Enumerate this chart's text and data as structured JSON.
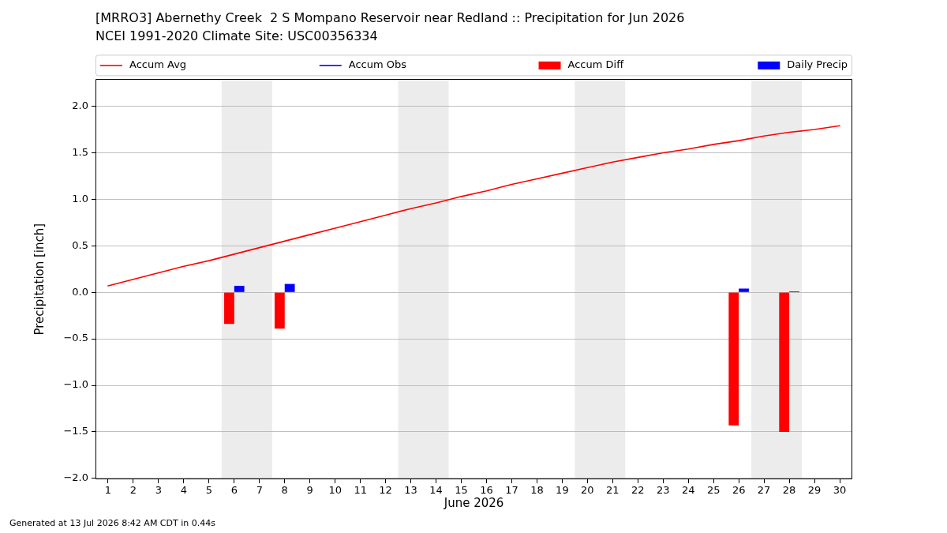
{
  "chart_data": {
    "type": "bar",
    "title": "[MRRO3] Abernethy Creek  2 S Mompano Reservoir near Redland :: Precipitation for Jun 2026",
    "subtitle": "NCEI 1991-2020 Climate Site: USC00356334",
    "xlabel": "June 2026",
    "ylabel": "Precipitation [inch]",
    "annotations": [
      "Generated at 13 Jul 2026 8:42 AM CDT in 0.44s"
    ],
    "x": [
      1,
      2,
      3,
      4,
      5,
      6,
      7,
      8,
      9,
      10,
      11,
      12,
      13,
      14,
      15,
      16,
      17,
      18,
      19,
      20,
      21,
      22,
      23,
      24,
      25,
      26,
      27,
      28,
      29,
      30
    ],
    "series": [
      {
        "name": "Accum Avg",
        "type": "line",
        "color": "#ff0000",
        "values": [
          0.07,
          0.14,
          0.21,
          0.28,
          0.34,
          0.41,
          0.48,
          0.55,
          0.62,
          0.69,
          0.76,
          0.83,
          0.9,
          0.96,
          1.03,
          1.09,
          1.16,
          1.22,
          1.28,
          1.34,
          1.4,
          1.45,
          1.5,
          1.54,
          1.59,
          1.63,
          1.68,
          1.72,
          1.75,
          1.79
        ]
      },
      {
        "name": "Accum Obs",
        "type": "line",
        "color": "#0000ff",
        "values": [
          null,
          null,
          null,
          null,
          null,
          null,
          null,
          null,
          null,
          null,
          null,
          null,
          null,
          null,
          null,
          null,
          null,
          null,
          null,
          null,
          null,
          null,
          null,
          null,
          null,
          null,
          null,
          null,
          null,
          null
        ]
      },
      {
        "name": "Accum Diff",
        "color": "#ff0000",
        "values": [
          null,
          null,
          null,
          null,
          null,
          -0.34,
          null,
          -0.39,
          null,
          null,
          null,
          null,
          null,
          null,
          null,
          null,
          null,
          null,
          null,
          null,
          null,
          null,
          null,
          null,
          null,
          -1.43,
          null,
          -1.5,
          null,
          null
        ]
      },
      {
        "name": "Daily Precip",
        "color": "#0000ff",
        "values": [
          null,
          null,
          null,
          null,
          null,
          0.07,
          null,
          0.09,
          null,
          null,
          null,
          null,
          null,
          null,
          null,
          null,
          null,
          null,
          null,
          null,
          null,
          null,
          null,
          null,
          null,
          0.04,
          null,
          0.01,
          null,
          null
        ]
      }
    ],
    "xlim": [
      0.5,
      30.5
    ],
    "xticks": [
      1,
      2,
      3,
      4,
      5,
      6,
      7,
      8,
      9,
      10,
      11,
      12,
      13,
      14,
      15,
      16,
      17,
      18,
      19,
      20,
      21,
      22,
      23,
      24,
      25,
      26,
      27,
      28,
      29,
      30
    ],
    "ylim": [
      -2.01,
      2.29
    ],
    "yticks": [
      {
        "value": -2,
        "label": "−2.0"
      },
      {
        "value": -1.5,
        "label": "−1.5"
      },
      {
        "value": -1,
        "label": "−1.0"
      },
      {
        "value": -0.5,
        "label": "−0.5"
      },
      {
        "value": 0,
        "label": "0.0"
      },
      0.5,
      {
        "value": 1,
        "label": "1.0"
      },
      1.5,
      {
        "value": 2,
        "label": "2.0"
      }
    ],
    "bands": [
      {
        "axis": "x",
        "from": 5.5,
        "to": 7.5,
        "color": "#ececec"
      },
      {
        "axis": "x",
        "from": 12.5,
        "to": 14.5,
        "color": "#ececec"
      },
      {
        "axis": "x",
        "from": 19.5,
        "to": 21.5,
        "color": "#ececec"
      },
      {
        "axis": "x",
        "from": 26.5,
        "to": 28.5,
        "color": "#ececec"
      }
    ],
    "grid": "y",
    "legend": "top",
    "marker": "none"
  }
}
